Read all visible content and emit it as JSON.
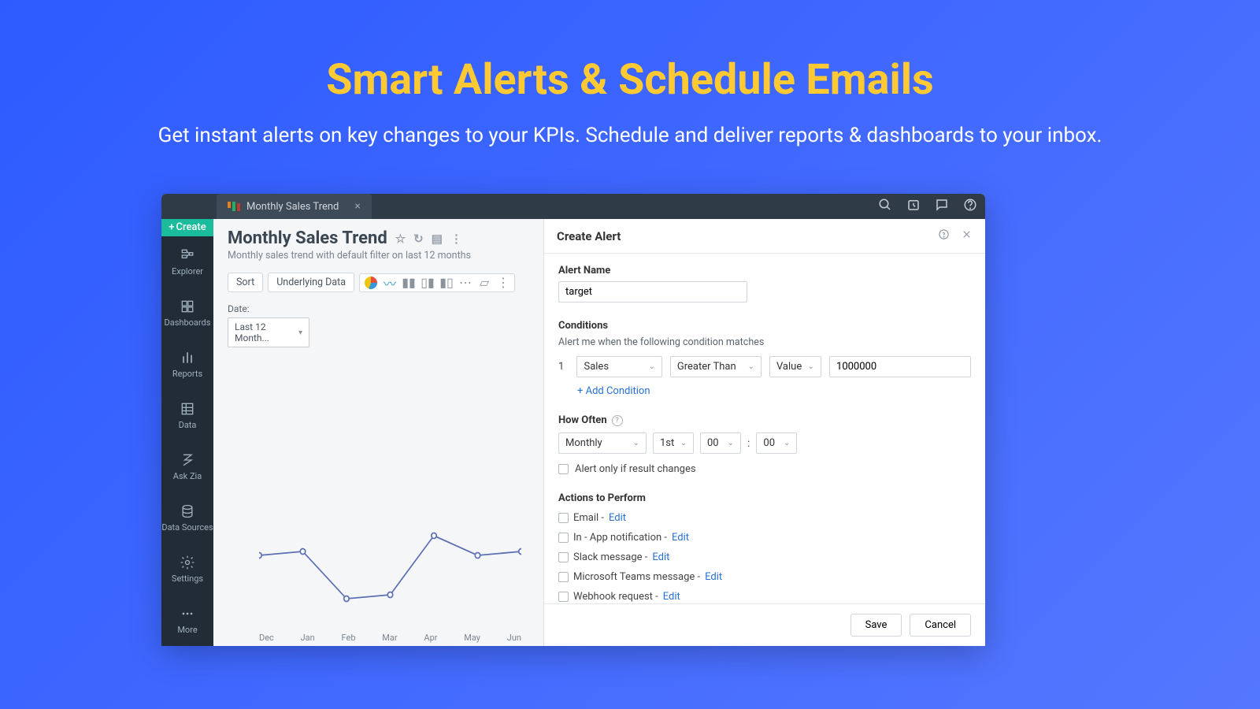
{
  "hero": {
    "title": "Smart Alerts & Schedule Emails",
    "subtitle": "Get instant alerts on key changes to your KPIs. Schedule and deliver reports & dashboards to your inbox."
  },
  "tab": {
    "label": "Monthly Sales Trend"
  },
  "create_label": "Create",
  "sidebar": [
    {
      "label": "Explorer"
    },
    {
      "label": "Dashboards"
    },
    {
      "label": "Reports"
    },
    {
      "label": "Data"
    },
    {
      "label": "Ask Zia"
    },
    {
      "label": "Data Sources"
    },
    {
      "label": "Settings"
    },
    {
      "label": "More"
    }
  ],
  "report": {
    "title": "Monthly Sales Trend",
    "desc": "Monthly sales trend with default filter on last 12 months",
    "sort_label": "Sort",
    "underlying_label": "Underlying Data",
    "filter_label": "Date:",
    "filter_value": "Last 12 Month..."
  },
  "chart": {
    "type": "line",
    "x_labels": [
      "Dec",
      "Jan",
      "Feb",
      "Mar",
      "Apr",
      "May",
      "Jun"
    ],
    "y_values": [
      95,
      100,
      40,
      45,
      120,
      95,
      100
    ],
    "line_color": "#5b6fb5",
    "point_color": "#5b6fb5",
    "ylim": [
      0,
      160
    ]
  },
  "panel": {
    "title": "Create Alert",
    "alert_name_label": "Alert Name",
    "alert_name_value": "target",
    "conditions_label": "Conditions",
    "conditions_sub": "Alert me when the following condition matches",
    "cond_num": "1",
    "cond_field": "Sales",
    "cond_op": "Greater Than",
    "cond_type": "Value",
    "cond_value": "1000000",
    "add_condition": "+ Add Condition",
    "how_often_label": "How Often",
    "freq": "Monthly",
    "day": "1st",
    "hour": "00",
    "minute": "00",
    "alert_only_label": "Alert only if result changes",
    "actions_label": "Actions to Perform",
    "actions": [
      {
        "label": "Email -",
        "edit": "Edit"
      },
      {
        "label": "In - App notification -",
        "edit": "Edit"
      },
      {
        "label": "Slack message -",
        "edit": "Edit"
      },
      {
        "label": "Microsoft Teams message -",
        "edit": "Edit"
      },
      {
        "label": "Webhook request -",
        "edit": "Edit"
      }
    ],
    "save": "Save",
    "cancel": "Cancel"
  }
}
